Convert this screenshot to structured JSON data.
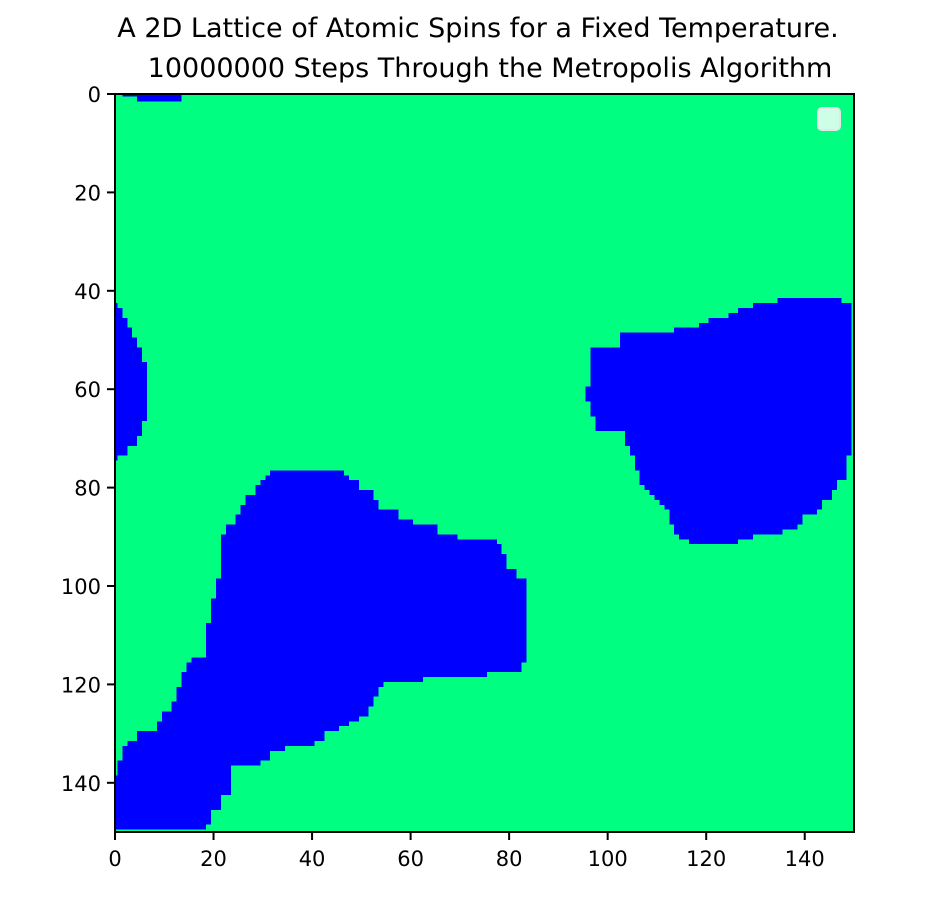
{
  "chart_data": {
    "type": "heatmap",
    "title": "A 2D Lattice of Atomic Spins for a Fixed Temperature.",
    "subtitle": "10000000 Steps Through the Metropolis Algorithm",
    "xlabel": "",
    "ylabel": "",
    "xlim": [
      0,
      150
    ],
    "ylim": [
      150,
      0
    ],
    "x_ticks": [
      0,
      20,
      40,
      60,
      80,
      100,
      120,
      140
    ],
    "y_ticks": [
      0,
      20,
      40,
      60,
      80,
      100,
      120,
      140
    ],
    "x_tick_labels": [
      "0",
      "20",
      "40",
      "60",
      "80",
      "100",
      "120",
      "140"
    ],
    "y_tick_labels": [
      "0",
      "20",
      "40",
      "60",
      "80",
      "100",
      "120",
      "140"
    ],
    "grid": false,
    "legend": "top-right",
    "colors": {
      "spin_up": "#00ff80",
      "spin_down": "#0000ff",
      "legend_patch": "#ccffe6"
    },
    "spin_down_domains": [
      {
        "name": "top-edge-strip",
        "polygon": [
          [
            2,
            0
          ],
          [
            2,
            1
          ],
          [
            5,
            1
          ],
          [
            5,
            2
          ],
          [
            14,
            2
          ],
          [
            14,
            0
          ]
        ]
      },
      {
        "name": "left-domain",
        "polygon": [
          [
            0,
            43
          ],
          [
            1,
            43
          ],
          [
            1,
            44
          ],
          [
            2,
            44
          ],
          [
            2,
            46
          ],
          [
            3,
            46
          ],
          [
            3,
            48
          ],
          [
            4,
            48
          ],
          [
            4,
            50
          ],
          [
            5,
            50
          ],
          [
            5,
            52
          ],
          [
            6,
            52
          ],
          [
            6,
            55
          ],
          [
            7,
            55
          ],
          [
            7,
            67
          ],
          [
            6,
            67
          ],
          [
            6,
            70
          ],
          [
            5,
            70
          ],
          [
            5,
            72
          ],
          [
            3,
            72
          ],
          [
            3,
            74
          ],
          [
            1,
            74
          ],
          [
            1,
            75
          ],
          [
            0,
            75
          ]
        ]
      },
      {
        "name": "right-domain",
        "polygon": [
          [
            103,
            52
          ],
          [
            103,
            49
          ],
          [
            114,
            49
          ],
          [
            114,
            48
          ],
          [
            119,
            48
          ],
          [
            119,
            47
          ],
          [
            121,
            47
          ],
          [
            121,
            46
          ],
          [
            125,
            46
          ],
          [
            125,
            45
          ],
          [
            127,
            45
          ],
          [
            127,
            44
          ],
          [
            130,
            44
          ],
          [
            130,
            43
          ],
          [
            135,
            43
          ],
          [
            135,
            42
          ],
          [
            148,
            42
          ],
          [
            148,
            43
          ],
          [
            150,
            43
          ],
          [
            150,
            74
          ],
          [
            149,
            74
          ],
          [
            149,
            79
          ],
          [
            147,
            79
          ],
          [
            147,
            81
          ],
          [
            146,
            81
          ],
          [
            146,
            83
          ],
          [
            144,
            83
          ],
          [
            144,
            85
          ],
          [
            143,
            85
          ],
          [
            143,
            86
          ],
          [
            140,
            86
          ],
          [
            140,
            88
          ],
          [
            139,
            88
          ],
          [
            139,
            89
          ],
          [
            136,
            89
          ],
          [
            136,
            90
          ],
          [
            130,
            90
          ],
          [
            130,
            91
          ],
          [
            127,
            91
          ],
          [
            127,
            92
          ],
          [
            117,
            92
          ],
          [
            117,
            91
          ],
          [
            115,
            91
          ],
          [
            115,
            90
          ],
          [
            114,
            90
          ],
          [
            114,
            88
          ],
          [
            113,
            88
          ],
          [
            113,
            85
          ],
          [
            112,
            85
          ],
          [
            112,
            84
          ],
          [
            111,
            84
          ],
          [
            111,
            83
          ],
          [
            110,
            83
          ],
          [
            110,
            82
          ],
          [
            109,
            82
          ],
          [
            109,
            81
          ],
          [
            108,
            81
          ],
          [
            108,
            80
          ],
          [
            107,
            80
          ],
          [
            107,
            77
          ],
          [
            106,
            77
          ],
          [
            106,
            74
          ],
          [
            105,
            74
          ],
          [
            105,
            72
          ],
          [
            104,
            72
          ],
          [
            104,
            69
          ],
          [
            98,
            69
          ],
          [
            98,
            66
          ],
          [
            97,
            66
          ],
          [
            97,
            63
          ],
          [
            96,
            63
          ],
          [
            96,
            60
          ],
          [
            97,
            60
          ],
          [
            97,
            52
          ]
        ]
      },
      {
        "name": "lower-left-domain",
        "polygon": [
          [
            31,
            78
          ],
          [
            32,
            78
          ],
          [
            32,
            77
          ],
          [
            47,
            77
          ],
          [
            47,
            78
          ],
          [
            48,
            78
          ],
          [
            48,
            79
          ],
          [
            50,
            79
          ],
          [
            50,
            81
          ],
          [
            53,
            81
          ],
          [
            53,
            83
          ],
          [
            54,
            83
          ],
          [
            54,
            85
          ],
          [
            58,
            85
          ],
          [
            58,
            87
          ],
          [
            61,
            87
          ],
          [
            61,
            88
          ],
          [
            66,
            88
          ],
          [
            66,
            90
          ],
          [
            70,
            90
          ],
          [
            70,
            91
          ],
          [
            78,
            91
          ],
          [
            78,
            92
          ],
          [
            79,
            92
          ],
          [
            79,
            94
          ],
          [
            80,
            94
          ],
          [
            80,
            97
          ],
          [
            82,
            97
          ],
          [
            82,
            99
          ],
          [
            84,
            99
          ],
          [
            84,
            116
          ],
          [
            83,
            116
          ],
          [
            83,
            118
          ],
          [
            76,
            118
          ],
          [
            76,
            119
          ],
          [
            63,
            119
          ],
          [
            63,
            120
          ],
          [
            55,
            120
          ],
          [
            55,
            121
          ],
          [
            54,
            121
          ],
          [
            54,
            123
          ],
          [
            53,
            123
          ],
          [
            53,
            125
          ],
          [
            52,
            125
          ],
          [
            52,
            127
          ],
          [
            50,
            127
          ],
          [
            50,
            128
          ],
          [
            48,
            128
          ],
          [
            48,
            129
          ],
          [
            46,
            129
          ],
          [
            46,
            130
          ],
          [
            43,
            130
          ],
          [
            43,
            132
          ],
          [
            41,
            132
          ],
          [
            41,
            133
          ],
          [
            35,
            133
          ],
          [
            35,
            134
          ],
          [
            32,
            134
          ],
          [
            32,
            136
          ],
          [
            30,
            136
          ],
          [
            30,
            137
          ],
          [
            24,
            137
          ],
          [
            24,
            143
          ],
          [
            22,
            143
          ],
          [
            22,
            146
          ],
          [
            20,
            146
          ],
          [
            20,
            149
          ],
          [
            19,
            149
          ],
          [
            19,
            150
          ],
          [
            0,
            150
          ],
          [
            0,
            139
          ],
          [
            1,
            139
          ],
          [
            1,
            136
          ],
          [
            2,
            136
          ],
          [
            2,
            133
          ],
          [
            3,
            133
          ],
          [
            3,
            132
          ],
          [
            5,
            132
          ],
          [
            5,
            130
          ],
          [
            9,
            130
          ],
          [
            9,
            128
          ],
          [
            10,
            128
          ],
          [
            10,
            126
          ],
          [
            12,
            126
          ],
          [
            12,
            124
          ],
          [
            13,
            124
          ],
          [
            13,
            121
          ],
          [
            14,
            121
          ],
          [
            14,
            118
          ],
          [
            15,
            118
          ],
          [
            15,
            116
          ],
          [
            16,
            116
          ],
          [
            16,
            115
          ],
          [
            19,
            115
          ],
          [
            19,
            108
          ],
          [
            20,
            108
          ],
          [
            20,
            103
          ],
          [
            21,
            103
          ],
          [
            21,
            99
          ],
          [
            22,
            99
          ],
          [
            22,
            90
          ],
          [
            23,
            90
          ],
          [
            23,
            88
          ],
          [
            25,
            88
          ],
          [
            25,
            86
          ],
          [
            26,
            86
          ],
          [
            26,
            84
          ],
          [
            27,
            84
          ],
          [
            27,
            82
          ],
          [
            29,
            82
          ],
          [
            29,
            80
          ],
          [
            30,
            80
          ],
          [
            30,
            79
          ],
          [
            31,
            79
          ]
        ]
      }
    ]
  }
}
